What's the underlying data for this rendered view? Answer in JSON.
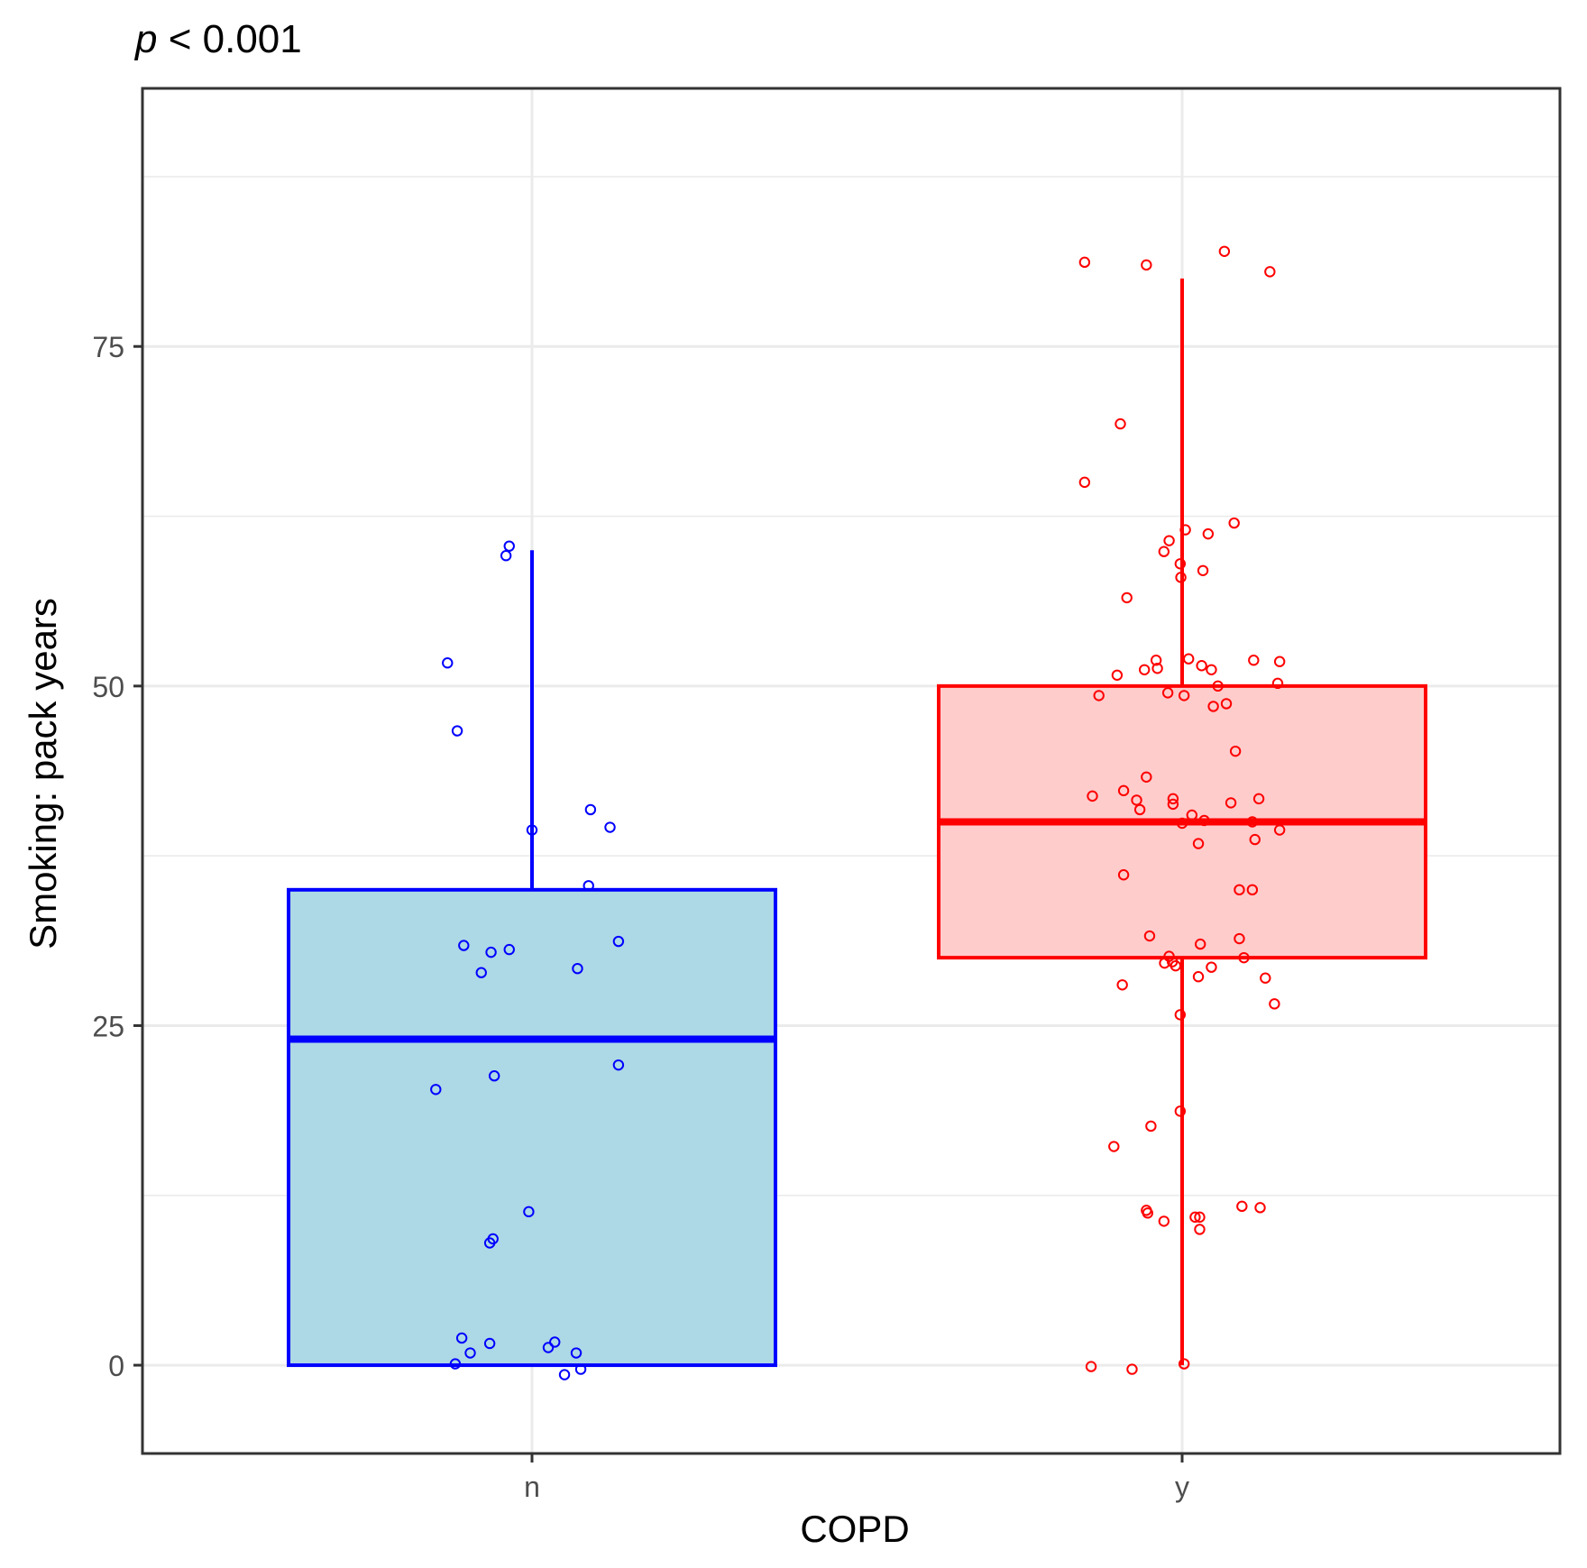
{
  "chart_data": {
    "type": "boxplot",
    "title": {
      "italic": "p",
      "rest": " < 0.001"
    },
    "xlabel": "COPD",
    "ylabel": "Smoking: pack years",
    "categories": [
      "n",
      "y"
    ],
    "ylim": [
      -6.5,
      94
    ],
    "yticks": [
      0,
      25,
      50,
      75
    ],
    "minor_yticks": [
      12.5,
      37.5,
      62.5,
      87.5
    ],
    "grid": true,
    "legend": "none",
    "colors": {
      "n": {
        "stroke": "#0000FF",
        "fill": "#ADD8E6"
      },
      "y": {
        "stroke": "#FF0000",
        "fill": "#FFCCCC"
      },
      "grid": "#EBEBEB",
      "axis_text": "#4D4D4D",
      "panel_border": "#333333"
    },
    "boxes": [
      {
        "category": "n",
        "min": 0,
        "q1": 0,
        "median": 24,
        "q3": 35,
        "max": 60
      },
      {
        "category": "y",
        "min": 0,
        "q1": 30,
        "median": 40,
        "q3": 50,
        "max": 80
      }
    ],
    "points": {
      "n": [
        {
          "dx": -0.13,
          "y": 51.7
        },
        {
          "dx": -0.115,
          "y": 46.7
        },
        {
          "dx": -0.035,
          "y": 60.3
        },
        {
          "dx": -0.04,
          "y": 59.6
        },
        {
          "dx": 0.0,
          "y": 39.4
        },
        {
          "dx": 0.09,
          "y": 40.9
        },
        {
          "dx": 0.12,
          "y": 39.6
        },
        {
          "dx": 0.087,
          "y": 35.3
        },
        {
          "dx": 0.133,
          "y": 31.2
        },
        {
          "dx": 0.07,
          "y": 29.2
        },
        {
          "dx": -0.105,
          "y": 30.9
        },
        {
          "dx": -0.063,
          "y": 30.4
        },
        {
          "dx": -0.035,
          "y": 30.6
        },
        {
          "dx": -0.078,
          "y": 28.9
        },
        {
          "dx": 0.133,
          "y": 22.1
        },
        {
          "dx": -0.058,
          "y": 21.3
        },
        {
          "dx": -0.148,
          "y": 20.3
        },
        {
          "dx": -0.005,
          "y": 11.3
        },
        {
          "dx": -0.065,
          "y": 9.0
        },
        {
          "dx": -0.06,
          "y": 9.3
        },
        {
          "dx": -0.108,
          "y": 2.0
        },
        {
          "dx": -0.065,
          "y": 1.6
        },
        {
          "dx": 0.025,
          "y": 1.3
        },
        {
          "dx": 0.035,
          "y": 1.7
        },
        {
          "dx": 0.068,
          "y": 0.9
        },
        {
          "dx": -0.095,
          "y": 0.9
        },
        {
          "dx": -0.118,
          "y": 0.1
        },
        {
          "dx": 0.075,
          "y": -0.3
        },
        {
          "dx": 0.05,
          "y": -0.7
        }
      ],
      "y": [
        {
          "dx": -0.15,
          "y": 81.2
        },
        {
          "dx": -0.055,
          "y": 81.0
        },
        {
          "dx": 0.065,
          "y": 82.0
        },
        {
          "dx": 0.135,
          "y": 80.5
        },
        {
          "dx": -0.095,
          "y": 69.3
        },
        {
          "dx": -0.15,
          "y": 65.0
        },
        {
          "dx": 0.08,
          "y": 62.0
        },
        {
          "dx": 0.04,
          "y": 61.2
        },
        {
          "dx": 0.005,
          "y": 61.5
        },
        {
          "dx": -0.02,
          "y": 60.7
        },
        {
          "dx": -0.028,
          "y": 59.9
        },
        {
          "dx": -0.003,
          "y": 59.0
        },
        {
          "dx": -0.002,
          "y": 58.0
        },
        {
          "dx": 0.032,
          "y": 58.5
        },
        {
          "dx": -0.085,
          "y": 56.5
        },
        {
          "dx": -0.04,
          "y": 51.9
        },
        {
          "dx": -0.058,
          "y": 51.2
        },
        {
          "dx": -0.038,
          "y": 51.3
        },
        {
          "dx": -0.1,
          "y": 50.8
        },
        {
          "dx": 0.01,
          "y": 52.0
        },
        {
          "dx": 0.03,
          "y": 51.5
        },
        {
          "dx": 0.045,
          "y": 51.2
        },
        {
          "dx": 0.11,
          "y": 51.9
        },
        {
          "dx": 0.15,
          "y": 51.8
        },
        {
          "dx": 0.147,
          "y": 50.2
        },
        {
          "dx": 0.055,
          "y": 50.0
        },
        {
          "dx": -0.128,
          "y": 49.3
        },
        {
          "dx": -0.022,
          "y": 49.5
        },
        {
          "dx": 0.003,
          "y": 49.3
        },
        {
          "dx": 0.048,
          "y": 48.5
        },
        {
          "dx": 0.068,
          "y": 48.7
        },
        {
          "dx": 0.082,
          "y": 45.2
        },
        {
          "dx": -0.055,
          "y": 43.3
        },
        {
          "dx": -0.09,
          "y": 42.3
        },
        {
          "dx": -0.07,
          "y": 41.6
        },
        {
          "dx": -0.138,
          "y": 41.9
        },
        {
          "dx": -0.065,
          "y": 40.9
        },
        {
          "dx": -0.014,
          "y": 41.7
        },
        {
          "dx": -0.014,
          "y": 41.3
        },
        {
          "dx": 0.075,
          "y": 41.4
        },
        {
          "dx": 0.118,
          "y": 41.7
        },
        {
          "dx": 0.015,
          "y": 40.5
        },
        {
          "dx": 0.034,
          "y": 40.1
        },
        {
          "dx": 0.108,
          "y": 40.0
        },
        {
          "dx": 0.0,
          "y": 39.9
        },
        {
          "dx": 0.15,
          "y": 39.4
        },
        {
          "dx": 0.112,
          "y": 38.7
        },
        {
          "dx": 0.025,
          "y": 38.4
        },
        {
          "dx": -0.09,
          "y": 36.1
        },
        {
          "dx": 0.088,
          "y": 35.0
        },
        {
          "dx": 0.108,
          "y": 35.0
        },
        {
          "dx": -0.05,
          "y": 31.6
        },
        {
          "dx": 0.028,
          "y": 31.0
        },
        {
          "dx": 0.088,
          "y": 31.4
        },
        {
          "dx": -0.02,
          "y": 30.1
        },
        {
          "dx": -0.027,
          "y": 29.6
        },
        {
          "dx": -0.015,
          "y": 29.7
        },
        {
          "dx": -0.01,
          "y": 29.4
        },
        {
          "dx": 0.045,
          "y": 29.3
        },
        {
          "dx": 0.095,
          "y": 30.0
        },
        {
          "dx": 0.025,
          "y": 28.6
        },
        {
          "dx": 0.128,
          "y": 28.5
        },
        {
          "dx": -0.092,
          "y": 28.0
        },
        {
          "dx": 0.142,
          "y": 26.6
        },
        {
          "dx": -0.003,
          "y": 25.8
        },
        {
          "dx": -0.003,
          "y": 18.7
        },
        {
          "dx": -0.048,
          "y": 17.6
        },
        {
          "dx": -0.105,
          "y": 16.1
        },
        {
          "dx": 0.092,
          "y": 11.7
        },
        {
          "dx": 0.12,
          "y": 11.6
        },
        {
          "dx": -0.055,
          "y": 11.4
        },
        {
          "dx": -0.053,
          "y": 11.2
        },
        {
          "dx": -0.028,
          "y": 10.6
        },
        {
          "dx": 0.02,
          "y": 10.9
        },
        {
          "dx": 0.027,
          "y": 10.9
        },
        {
          "dx": 0.027,
          "y": 10.0
        },
        {
          "dx": 0.003,
          "y": 0.1
        },
        {
          "dx": -0.14,
          "y": -0.1
        },
        {
          "dx": -0.077,
          "y": -0.3
        }
      ]
    }
  }
}
